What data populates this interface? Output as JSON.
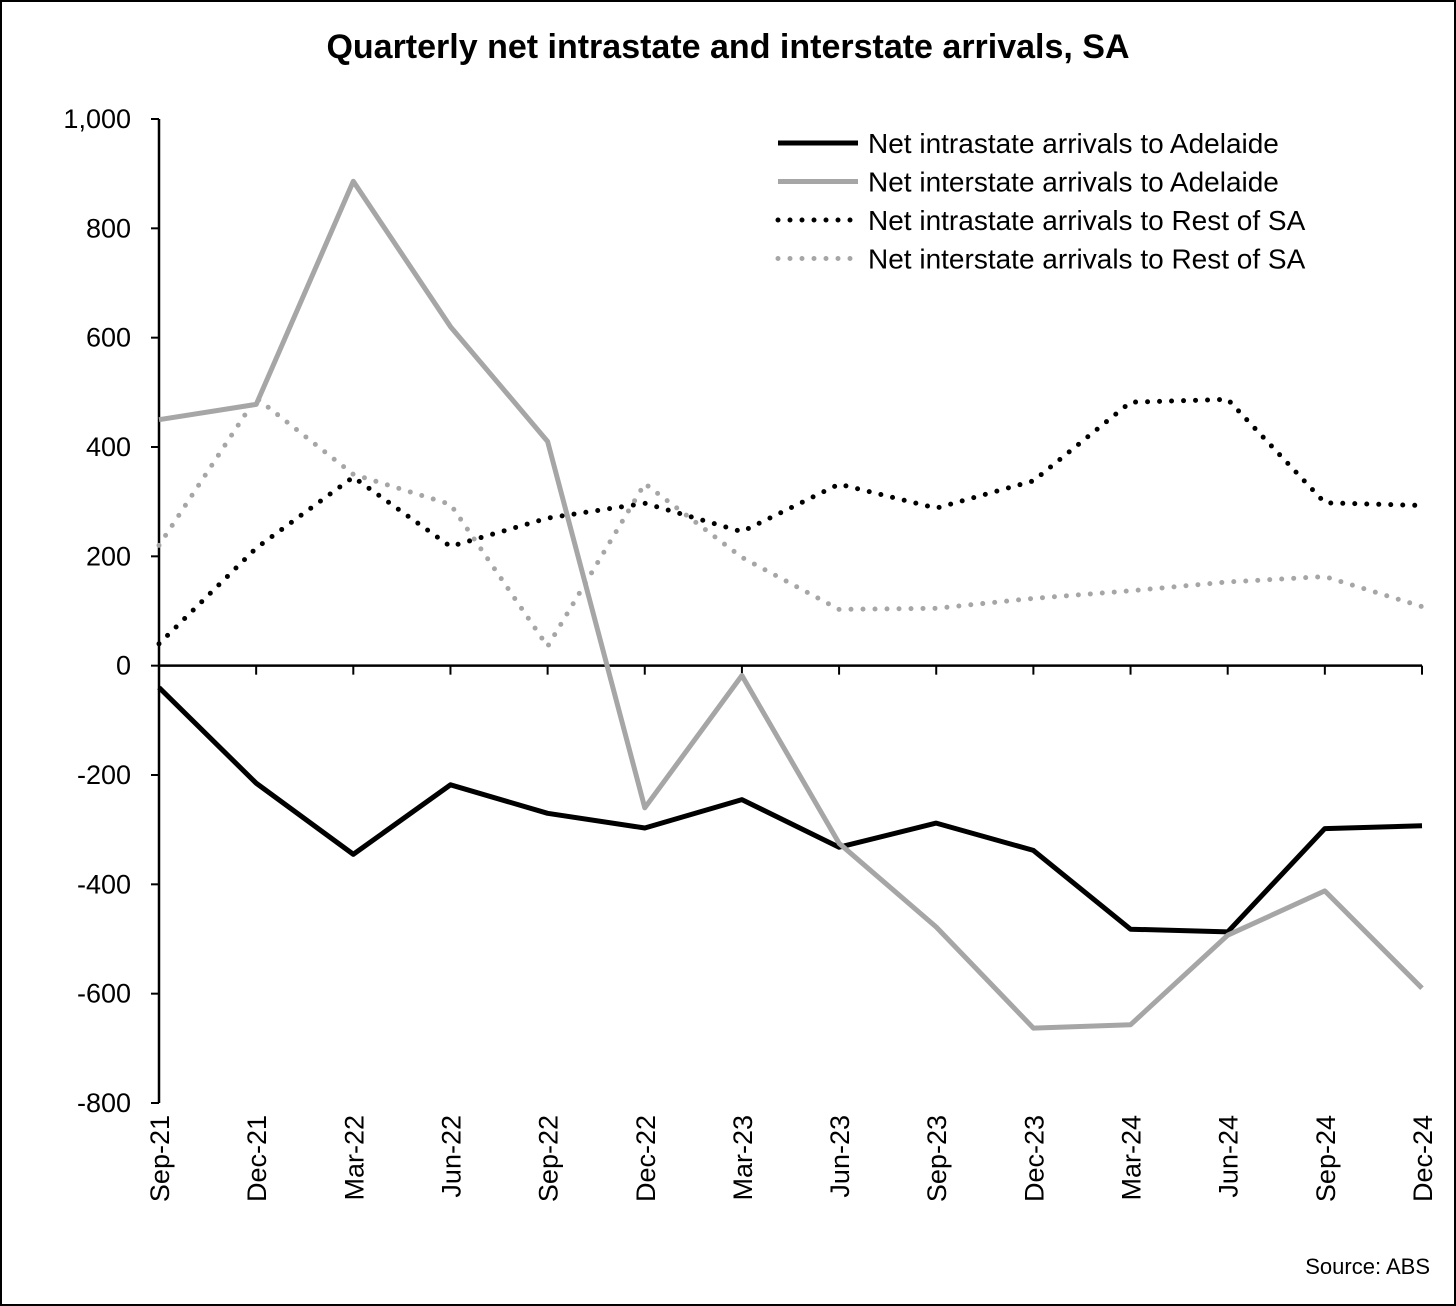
{
  "chart_data": {
    "type": "line",
    "title": "Quarterly net intrastate and interstate arrivals, SA",
    "source": "Source: ABS",
    "xlabel": "",
    "ylabel": "",
    "ylim": [
      -800,
      1000
    ],
    "yticks": [
      1000,
      800,
      600,
      400,
      200,
      0,
      -200,
      -400,
      -600,
      -800
    ],
    "ytick_labels": [
      "1,000",
      "800",
      "600",
      "400",
      "200",
      "0",
      "-200",
      "-400",
      "-600",
      "-800"
    ],
    "categories": [
      "Sep-21",
      "Dec-21",
      "Mar-22",
      "Jun-22",
      "Sep-22",
      "Dec-22",
      "Mar-23",
      "Jun-23",
      "Sep-23",
      "Dec-23",
      "Mar-24",
      "Jun-24",
      "Sep-24",
      "Dec-24"
    ],
    "grid": false,
    "legend_position": "top-right",
    "series": [
      {
        "name": "Net intrastate arrivals to Adelaide",
        "color": "#000000",
        "style": "solid",
        "values": [
          -40,
          -215,
          -345,
          -218,
          -270,
          -297,
          -245,
          -332,
          -288,
          -338,
          -482,
          -487,
          -298,
          -293
        ]
      },
      {
        "name": "Net interstate arrivals to Adelaide",
        "color": "#a6a6a6",
        "style": "solid",
        "values": [
          450,
          478,
          886,
          620,
          410,
          -260,
          -18,
          -325,
          -478,
          -663,
          -657,
          -493,
          -412,
          -590
        ]
      },
      {
        "name": "Net intrastate arrivals to Rest of SA",
        "color": "#000000",
        "style": "dotted",
        "values": [
          40,
          215,
          345,
          218,
          270,
          297,
          245,
          332,
          288,
          338,
          482,
          487,
          298,
          293
        ]
      },
      {
        "name": "Net interstate arrivals to Rest of SA",
        "color": "#a6a6a6",
        "style": "dotted",
        "values": [
          220,
          490,
          350,
          295,
          35,
          333,
          198,
          103,
          105,
          123,
          137,
          153,
          163,
          108
        ]
      }
    ]
  }
}
